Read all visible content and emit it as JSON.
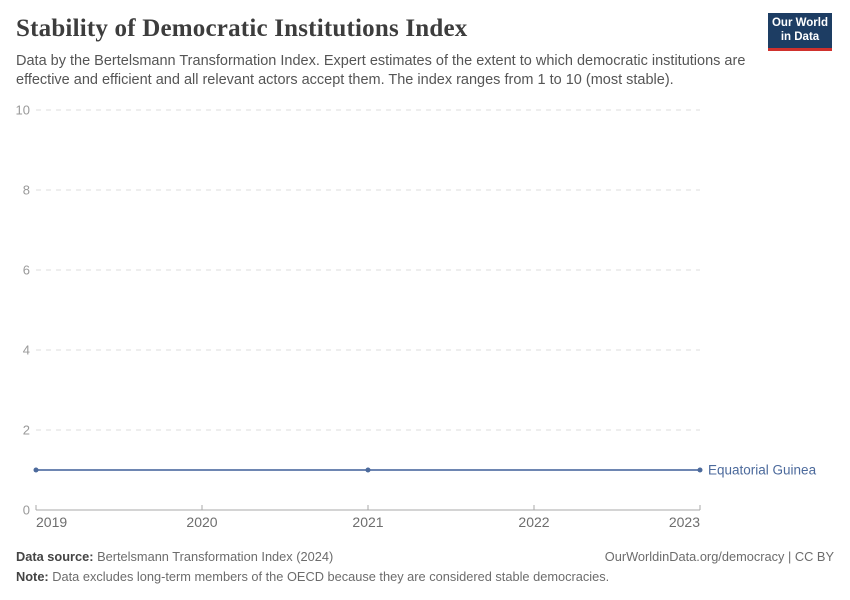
{
  "header": {
    "title": "Stability of Democratic Institutions Index",
    "subtitle": "Data by the Bertelsmann Transformation Index. Expert estimates of the extent to which democratic institutions are effective and efficient and all relevant actors accept them. The index ranges from 1 to 10 (most stable).",
    "logo": {
      "line1": "Our World",
      "line2": "in Data",
      "bg": "#1d3d63",
      "accent": "#d0312d"
    }
  },
  "chart_data": {
    "type": "line",
    "x": [
      2019,
      2021,
      2023
    ],
    "series": [
      {
        "name": "Equatorial Guinea",
        "values": [
          1,
          1,
          1
        ],
        "color": "#4c6a9c",
        "line_color": "#6e86b2"
      }
    ],
    "title": "Stability of Democratic Institutions Index",
    "xlabel": "",
    "ylabel": "",
    "xlim": [
      2019,
      2023
    ],
    "ylim": [
      0,
      10
    ],
    "xticks": [
      2019,
      2020,
      2021,
      2022,
      2023
    ],
    "yticks": [
      0,
      2,
      4,
      6,
      8,
      10
    ],
    "grid": "horizontal-dashed",
    "legend": "end-of-line-label"
  },
  "footer": {
    "source_label": "Data source:",
    "source_value": " Bertelsmann Transformation Index (2024)",
    "link": "OurWorldinData.org/democracy | CC BY",
    "note_label": "Note:",
    "note_value": " Data excludes long-term members of the OECD because they are considered stable democracies."
  }
}
